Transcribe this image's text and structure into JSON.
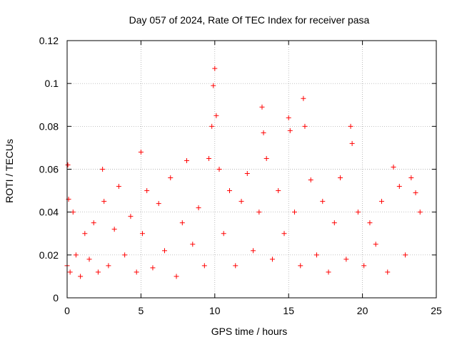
{
  "chart_data": {
    "type": "scatter",
    "title": "Day 057 of 2024, Rate Of TEC Index for receiver pasa",
    "xlabel": "GPS time / hours",
    "ylabel": "ROTI / TECUs",
    "xlim": [
      0,
      25
    ],
    "ylim": [
      0,
      0.12
    ],
    "xticks": [
      0,
      5,
      10,
      15,
      20,
      25
    ],
    "xtick_labels": [
      "0",
      "5",
      "10",
      "15",
      "20",
      "25"
    ],
    "yticks": [
      0,
      0.02,
      0.04,
      0.06,
      0.08,
      0.1,
      0.12
    ],
    "ytick_labels": [
      "0",
      "0.02",
      "0.04",
      "0.06",
      "0.08",
      "0.1",
      "0.12"
    ],
    "grid": true,
    "marker": "+",
    "color": "#ff0000",
    "series": [
      {
        "name": "ROTI",
        "x": [
          0.0,
          0.05,
          0.1,
          0.2,
          0.4,
          0.6,
          0.9,
          1.2,
          1.5,
          1.8,
          2.1,
          2.4,
          2.5,
          2.8,
          3.2,
          3.5,
          3.9,
          4.3,
          4.7,
          5.0,
          5.1,
          5.4,
          5.8,
          6.2,
          6.6,
          7.0,
          7.4,
          7.8,
          8.1,
          8.5,
          8.9,
          9.3,
          9.6,
          9.8,
          9.9,
          10.0,
          10.1,
          10.3,
          10.6,
          11.0,
          11.4,
          11.8,
          12.2,
          12.6,
          13.0,
          13.2,
          13.3,
          13.5,
          13.9,
          14.3,
          14.7,
          15.0,
          15.1,
          15.4,
          15.8,
          16.0,
          16.1,
          16.5,
          16.9,
          17.3,
          17.7,
          18.1,
          18.5,
          18.9,
          19.2,
          19.3,
          19.7,
          20.1,
          20.5,
          20.9,
          21.3,
          21.7,
          22.1,
          22.5,
          22.9,
          23.3,
          23.6,
          23.9
        ],
        "y": [
          0.015,
          0.062,
          0.046,
          0.012,
          0.04,
          0.02,
          0.01,
          0.03,
          0.018,
          0.035,
          0.012,
          0.06,
          0.045,
          0.015,
          0.032,
          0.052,
          0.02,
          0.038,
          0.012,
          0.068,
          0.03,
          0.05,
          0.014,
          0.044,
          0.022,
          0.056,
          0.01,
          0.035,
          0.064,
          0.025,
          0.042,
          0.015,
          0.065,
          0.08,
          0.099,
          0.107,
          0.085,
          0.06,
          0.03,
          0.05,
          0.015,
          0.045,
          0.058,
          0.022,
          0.04,
          0.089,
          0.077,
          0.065,
          0.018,
          0.05,
          0.03,
          0.084,
          0.078,
          0.04,
          0.015,
          0.093,
          0.08,
          0.055,
          0.02,
          0.045,
          0.012,
          0.035,
          0.056,
          0.018,
          0.08,
          0.072,
          0.04,
          0.015,
          0.035,
          0.025,
          0.045,
          0.012,
          0.061,
          0.052,
          0.02,
          0.056,
          0.049,
          0.04
        ]
      }
    ]
  }
}
